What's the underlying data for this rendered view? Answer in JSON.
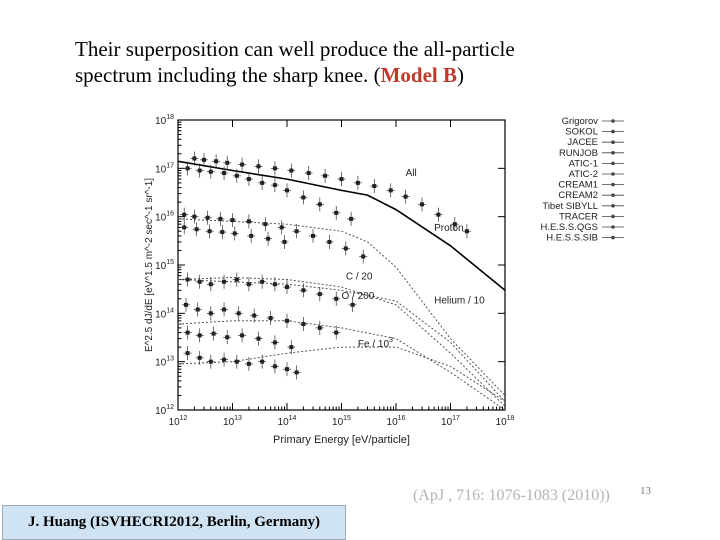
{
  "headline": {
    "line1": "Their superposition can well produce the all-particle",
    "line2_prefix": "spectrum including the sharp knee. (",
    "line2_highlight": "Model B",
    "line2_suffix": ")"
  },
  "citation": "(ApJ , 716: 1076-1083 (2010))",
  "page_number": "13",
  "footer": "J. Huang (ISVHECRI2012, Berlin, Germany)",
  "chart_data": {
    "type": "line",
    "xlabel": "Primary Energy [eV/particle]",
    "ylabel": "E^2.5 dJ/dE [eV^1.5 m^-2 sec^-1 sr^-1]",
    "xscale": "log",
    "yscale": "log",
    "xlim": [
      1000000000000.0,
      1e+18
    ],
    "ylim": [
      1000000000000.0,
      1e+18
    ],
    "x_tick_labels": [
      "10^12",
      "10^13",
      "10^14",
      "10^15",
      "10^16",
      "10^17",
      "10^18"
    ],
    "y_tick_labels": [
      "10^12",
      "10^13",
      "10^14",
      "10^15",
      "10^16",
      "10^17",
      "10^18"
    ],
    "legend": {
      "placement": "right",
      "entries": [
        "Grigorov",
        "SOKOL",
        "JACEE",
        "RUNJOB",
        "ATIC-1",
        "ATIC-2",
        "CREAM1",
        "CREAM2",
        "Tibet SIBYLL",
        "TRACER",
        "H.E.S.S.QGS",
        "H.E.S.S.SIB"
      ]
    },
    "series": [
      {
        "name": "All",
        "style": "solid",
        "x": [
          1000000000000.0,
          10000000000000.0,
          100000000000000.0,
          1000000000000000.0,
          3000000000000000.0,
          1e+16,
          1e+17,
          1e+18
        ],
        "y": [
          1.4e+17,
          9e+16,
          6e+16,
          3.5e+16,
          2.8e+16,
          1.4e+16,
          2500000000000000.0,
          300000000000000.0
        ]
      },
      {
        "name": "Proton",
        "style": "dotted",
        "x": [
          1000000000000.0,
          10000000000000.0,
          100000000000000.0,
          1000000000000000.0,
          3000000000000000.0,
          1e+16,
          1e+17,
          1e+18
        ],
        "y": [
          9000000000000000.0,
          8000000000000000.0,
          7000000000000000.0,
          5000000000000000.0,
          3000000000000000.0,
          900000000000000.0,
          30000000000000.0,
          2000000000000.0
        ]
      },
      {
        "name": "C / 20",
        "style": "dotted",
        "x": [
          1000000000000.0,
          10000000000000.0,
          100000000000000.0,
          1000000000000000.0,
          1e+16,
          1e+17,
          1e+18
        ],
        "y": [
          500000000000000.0,
          550000000000000.0,
          500000000000000.0,
          350000000000000.0,
          150000000000000.0,
          15000000000000.0,
          1200000000000.0
        ]
      },
      {
        "name": "O / 200",
        "style": "dotted",
        "x": [
          1000000000000.0,
          10000000000000.0,
          100000000000000.0,
          1000000000000000.0,
          1e+16,
          1e+17,
          1e+18
        ],
        "y": [
          60000000000000.0,
          70000000000000.0,
          70000000000000.0,
          50000000000000.0,
          30000000000000.0,
          6000000000000.0,
          1000000000000.0
        ]
      },
      {
        "name": "Helium / 10",
        "style": "dotted",
        "x": [
          1000000000000.0,
          10000000000000.0,
          100000000000000.0,
          1000000000000000.0,
          1e+16,
          1e+17,
          1e+18
        ],
        "y": [
          500000000000000.0,
          450000000000000.0,
          400000000000000.0,
          300000000000000.0,
          180000000000000.0,
          25000000000000.0,
          1500000000000.0
        ]
      },
      {
        "name": "Fe / 10^3",
        "style": "dotted",
        "x": [
          1000000000000.0,
          10000000000000.0,
          100000000000000.0,
          1000000000000000.0,
          1e+16,
          1e+17,
          1e+18
        ],
        "y": [
          9000000000000.0,
          10000000000000.0,
          15000000000000.0,
          20000000000000.0,
          20000000000000.0,
          8000000000000.0,
          1500000000000.0
        ]
      }
    ],
    "points": [
      [
        2000000000000.0,
        1.6e+17
      ],
      [
        3000000000000.0,
        1.5e+17
      ],
      [
        5000000000000.0,
        1.4e+17
      ],
      [
        8000000000000.0,
        1.3e+17
      ],
      [
        15000000000000.0,
        1.2e+17
      ],
      [
        30000000000000.0,
        1.1e+17
      ],
      [
        60000000000000.0,
        1e+17
      ],
      [
        120000000000000.0,
        9e+16
      ],
      [
        250000000000000.0,
        8e+16
      ],
      [
        500000000000000.0,
        7e+16
      ],
      [
        1000000000000000.0,
        6e+16
      ],
      [
        2000000000000000.0,
        5e+16
      ],
      [
        4000000000000000.0,
        4.3e+16
      ],
      [
        8000000000000000.0,
        3.5e+16
      ],
      [
        1.5e+16,
        2.6e+16
      ],
      [
        3e+16,
        1.8e+16
      ],
      [
        6e+16,
        1.1e+16
      ],
      [
        1.2e+17,
        7000000000000000.0
      ],
      [
        2e+17,
        5000000000000000.0
      ],
      [
        1500000000000.0,
        1e+17
      ],
      [
        2500000000000.0,
        9e+16
      ],
      [
        4000000000000.0,
        8.5e+16
      ],
      [
        7000000000000.0,
        8e+16
      ],
      [
        12000000000000.0,
        7e+16
      ],
      [
        20000000000000.0,
        6e+16
      ],
      [
        35000000000000.0,
        5e+16
      ],
      [
        60000000000000.0,
        4.5e+16
      ],
      [
        100000000000000.0,
        3.5e+16
      ],
      [
        200000000000000.0,
        2.5e+16
      ],
      [
        400000000000000.0,
        1.8e+16
      ],
      [
        800000000000000.0,
        1.2e+16
      ],
      [
        1500000000000000.0,
        9000000000000000.0
      ],
      [
        1300000000000.0,
        1.1e+16
      ],
      [
        2000000000000.0,
        1e+16
      ],
      [
        3500000000000.0,
        9500000000000000.0
      ],
      [
        6000000000000.0,
        9000000000000000.0
      ],
      [
        10000000000000.0,
        8500000000000000.0
      ],
      [
        20000000000000.0,
        8000000000000000.0
      ],
      [
        40000000000000.0,
        7000000000000000.0
      ],
      [
        80000000000000.0,
        6000000000000000.0
      ],
      [
        150000000000000.0,
        5000000000000000.0
      ],
      [
        300000000000000.0,
        4000000000000000.0
      ],
      [
        600000000000000.0,
        3000000000000000.0
      ],
      [
        1200000000000000.0,
        2200000000000000.0
      ],
      [
        2500000000000000.0,
        1500000000000000.0
      ],
      [
        1300000000000.0,
        6000000000000000.0
      ],
      [
        2200000000000.0,
        5500000000000000.0
      ],
      [
        3800000000000.0,
        5000000000000000.0
      ],
      [
        6500000000000.0,
        4800000000000000.0
      ],
      [
        11000000000000.0,
        4500000000000000.0
      ],
      [
        22000000000000.0,
        4000000000000000.0
      ],
      [
        45000000000000.0,
        3500000000000000.0
      ],
      [
        90000000000000.0,
        3000000000000000.0
      ],
      [
        1500000000000.0,
        500000000000000.0
      ],
      [
        2500000000000.0,
        450000000000000.0
      ],
      [
        4000000000000.0,
        400000000000000.0
      ],
      [
        7000000000000.0,
        450000000000000.0
      ],
      [
        12000000000000.0,
        500000000000000.0
      ],
      [
        20000000000000.0,
        400000000000000.0
      ],
      [
        35000000000000.0,
        450000000000000.0
      ],
      [
        60000000000000.0,
        400000000000000.0
      ],
      [
        100000000000000.0,
        350000000000000.0
      ],
      [
        200000000000000.0,
        300000000000000.0
      ],
      [
        400000000000000.0,
        250000000000000.0
      ],
      [
        800000000000000.0,
        200000000000000.0
      ],
      [
        1600000000000000.0,
        150000000000000.0
      ],
      [
        1400000000000.0,
        150000000000000.0
      ],
      [
        2300000000000.0,
        120000000000000.0
      ],
      [
        4000000000000.0,
        100000000000000.0
      ],
      [
        7000000000000.0,
        120000000000000.0
      ],
      [
        13000000000000.0,
        100000000000000.0
      ],
      [
        25000000000000.0,
        90000000000000.0
      ],
      [
        50000000000000.0,
        80000000000000.0
      ],
      [
        100000000000000.0,
        70000000000000.0
      ],
      [
        200000000000000.0,
        60000000000000.0
      ],
      [
        400000000000000.0,
        50000000000000.0
      ],
      [
        800000000000000.0,
        40000000000000.0
      ],
      [
        1500000000000.0,
        40000000000000.0
      ],
      [
        2500000000000.0,
        35000000000000.0
      ],
      [
        4500000000000.0,
        38000000000000.0
      ],
      [
        8000000000000.0,
        32000000000000.0
      ],
      [
        15000000000000.0,
        35000000000000.0
      ],
      [
        30000000000000.0,
        30000000000000.0
      ],
      [
        60000000000000.0,
        25000000000000.0
      ],
      [
        120000000000000.0,
        20000000000000.0
      ],
      [
        1500000000000.0,
        15000000000000.0
      ],
      [
        2500000000000.0,
        12000000000000.0
      ],
      [
        4000000000000.0,
        10000000000000.0
      ],
      [
        7000000000000.0,
        11000000000000.0
      ],
      [
        12000000000000.0,
        10000000000000.0
      ],
      [
        20000000000000.0,
        9000000000000.0
      ],
      [
        35000000000000.0,
        10000000000000.0
      ],
      [
        60000000000000.0,
        8000000000000.0
      ],
      [
        100000000000000.0,
        7000000000000.0
      ],
      [
        150000000000000.0,
        6000000000000.0
      ]
    ],
    "curve_labels": [
      {
        "text": "All",
        "x": 1.5e+16,
        "y": 7e+16
      },
      {
        "text": "Proton",
        "x": 5e+16,
        "y": 5000000000000000.0
      },
      {
        "text": "C / 20",
        "x": 1200000000000000.0,
        "y": 500000000000000.0
      },
      {
        "text": "O / 200",
        "x": 1000000000000000.0,
        "y": 200000000000000.0
      },
      {
        "text": "Helium / 10",
        "x": 5e+16,
        "y": 160000000000000.0
      },
      {
        "text": "Fe / 10^3",
        "x": 2000000000000000.0,
        "y": 20000000000000.0
      }
    ]
  }
}
